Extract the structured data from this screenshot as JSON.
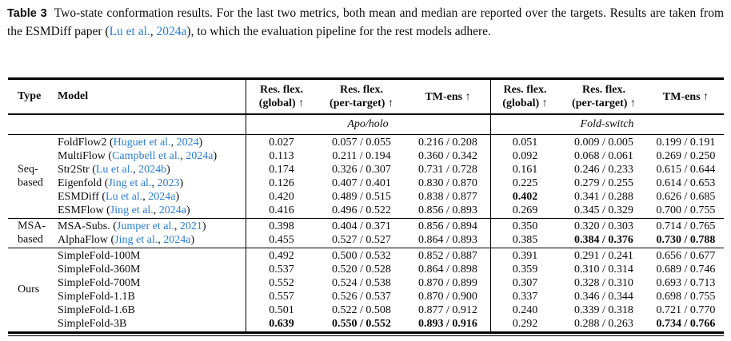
{
  "caption": {
    "label": "Table 3",
    "text_before_link": "Two-state conformation results. For the last two metrics, both mean and median are reported over the targets. Results are taken from the ESMDiff paper (",
    "link_author": "Lu et al.",
    "link_comma": ", ",
    "link_year": "2024a",
    "text_after_link": "), to which the evaluation pipeline for the rest models adhere."
  },
  "table": {
    "headers": {
      "type": "Type",
      "model": "Model",
      "metrics": [
        {
          "line1": "Res. flex.",
          "line2": "(global) ↑"
        },
        {
          "line1": "Res. flex.",
          "line2": "(per-target) ↑"
        },
        {
          "line1": "TM-ens ↑"
        },
        {
          "line1": "Res. flex.",
          "line2": "(global) ↑"
        },
        {
          "line1": "Res. flex.",
          "line2": "(per-target) ↑"
        },
        {
          "line1": "TM-ens ↑"
        }
      ],
      "group_left": "Apo/holo",
      "group_right": "Fold-switch"
    },
    "groups": [
      {
        "type_line1": "Seq-",
        "type_line2": "based",
        "rows": [
          {
            "model": "FoldFlow2",
            "open": " (",
            "cite_author": "Huguet et al.",
            "comma": ", ",
            "cite_year": "2024",
            "close": ")",
            "values": [
              "0.027",
              "0.057 / 0.055",
              "0.216 / 0.208",
              "0.051",
              "0.009 / 0.005",
              "0.199 / 0.191"
            ]
          },
          {
            "model": "MultiFlow",
            "open": " (",
            "cite_author": "Campbell et al.",
            "comma": ", ",
            "cite_year": "2024a",
            "close": ")",
            "values": [
              "0.113",
              "0.211 / 0.194",
              "0.360 / 0.342",
              "0.092",
              "0.068 / 0.061",
              "0.269 / 0.250"
            ]
          },
          {
            "model": "Str2Str",
            "open": " (",
            "cite_author": "Lu et al.",
            "comma": ", ",
            "cite_year": "2024b",
            "close": ")",
            "values": [
              "0.174",
              "0.326 / 0.307",
              "0.731 / 0.728",
              "0.161",
              "0.246 / 0.233",
              "0.615 / 0.644"
            ]
          },
          {
            "model": "Eigenfold",
            "open": " (",
            "cite_author": "Jing et al.",
            "comma": ", ",
            "cite_year": "2023",
            "close": ")",
            "values": [
              "0.126",
              "0.407 / 0.401",
              "0.830 / 0.870",
              "0.225",
              "0.279 / 0.255",
              "0.614 / 0.653"
            ]
          },
          {
            "model": "ESMDiff",
            "open": " (",
            "cite_author": "Lu et al.",
            "comma": ", ",
            "cite_year": "2024a",
            "close": ")",
            "values": [
              "0.420",
              "0.489 / 0.515",
              "0.838 / 0.877",
              "0.402",
              "0.341 / 0.288",
              "0.626 / 0.685"
            ]
          },
          {
            "model": "ESMFlow",
            "open": " (",
            "cite_author": "Jing et al.",
            "comma": ", ",
            "cite_year": "2024a",
            "close": ")",
            "values": [
              "0.416",
              "0.496 / 0.522",
              "0.856 / 0.893",
              "0.269",
              "0.345 / 0.329",
              "0.700 / 0.755"
            ]
          }
        ]
      },
      {
        "type_line1": "MSA-",
        "type_line2": "based",
        "rows": [
          {
            "model": "MSA-Subs.",
            "open": " (",
            "cite_author": "Jumper et al.",
            "comma": ", ",
            "cite_year": "2021",
            "close": ")",
            "values": [
              "0.398",
              "0.404 / 0.371",
              "0.856 / 0.894",
              "0.350",
              "0.320 / 0.303",
              "0.714 / 0.765"
            ]
          },
          {
            "model": "AlphaFlow",
            "open": " (",
            "cite_author": "Jing et al.",
            "comma": ", ",
            "cite_year": "2024a",
            "close": ")",
            "values": [
              "0.455",
              "0.527 / 0.527",
              "0.864 / 0.893",
              "0.385",
              "0.384 / 0.376",
              "0.730 / 0.788"
            ]
          }
        ]
      },
      {
        "type_line1": "Ours",
        "rows": [
          {
            "model": "SimpleFold-100M",
            "values": [
              "0.492",
              "0.500 / 0.532",
              "0.852 / 0.887",
              "0.391",
              "0.291 / 0.241",
              "0.656 / 0.677"
            ]
          },
          {
            "model": "SimpleFold-360M",
            "values": [
              "0.537",
              "0.520 / 0.528",
              "0.864 / 0.898",
              "0.359",
              "0.310 / 0.314",
              "0.689 / 0.746"
            ]
          },
          {
            "model": "SimpleFold-700M",
            "values": [
              "0.552",
              "0.524 / 0.538",
              "0.870 / 0.899",
              "0.307",
              "0.328 / 0.310",
              "0.693 / 0.713"
            ]
          },
          {
            "model": "SimpleFold-1.1B",
            "values": [
              "0.557",
              "0.526 / 0.537",
              "0.870 / 0.900",
              "0.337",
              "0.346 / 0.344",
              "0.698 / 0.755"
            ]
          },
          {
            "model": "SimpleFold-1.6B",
            "values": [
              "0.501",
              "0.522 / 0.508",
              "0.877 / 0.912",
              "0.240",
              "0.339 / 0.318",
              "0.721 / 0.770"
            ]
          },
          {
            "model": "SimpleFold-3B",
            "values": [
              "0.639",
              "0.550 / 0.552",
              "0.893 / 0.916",
              "0.292",
              "0.288 / 0.263",
              "0.734 / 0.766"
            ]
          }
        ]
      }
    ],
    "accent_link_color": "#2d7dd2"
  }
}
